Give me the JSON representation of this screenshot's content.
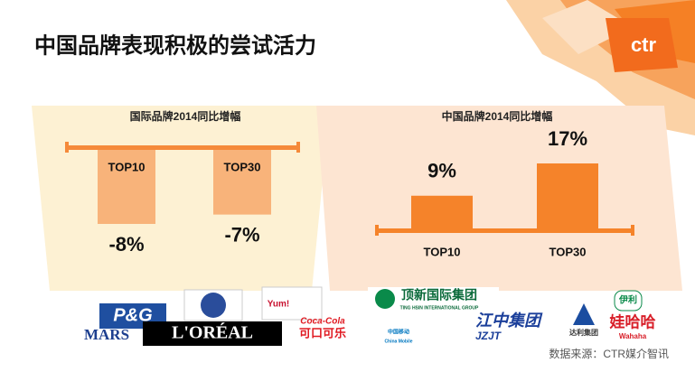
{
  "title": "中国品牌表现积极的尝试活力",
  "logo": "ctr",
  "source": "数据来源：CTR媒介智讯",
  "logos": [
    "P&G",
    "MARS",
    "L'ORÉAL",
    "Yum!",
    "Coca-Cola",
    "可口可乐",
    "顶新国际集团",
    "TING HSIN INTERNATIONAL GROUP",
    "中国移动",
    "China Mobile",
    "江中集团",
    "JZJT",
    "达利集团",
    "伊利",
    "娃哈哈",
    "Wahaha"
  ],
  "chart_data": [
    {
      "type": "bar",
      "title": "国际品牌2014同比增幅",
      "categories": [
        "TOP10",
        "TOP30"
      ],
      "values": [
        -8,
        -7
      ],
      "value_labels": [
        "-8%",
        "-7%"
      ],
      "color": "#f8b37a",
      "baseline_color": "#f58a3a"
    },
    {
      "type": "bar",
      "title": "中国品牌2014同比增幅",
      "categories": [
        "TOP10",
        "TOP30"
      ],
      "values": [
        9,
        17
      ],
      "value_labels": [
        "9%",
        "17%"
      ],
      "color": "#f5832a",
      "baseline_color": "#f5832a"
    }
  ]
}
